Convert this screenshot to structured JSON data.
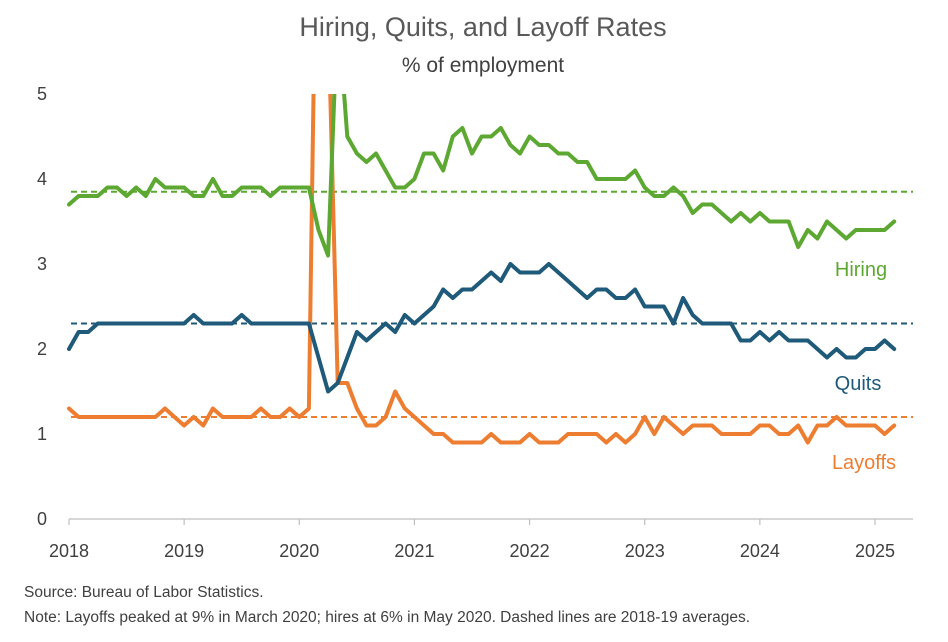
{
  "chart_data": {
    "type": "line",
    "title": "Hiring, Quits, and Layoff Rates",
    "subtitle": "% of employment",
    "xlabel": "",
    "ylabel": "",
    "xlim": [
      2018.0,
      2025.33
    ],
    "ylim": [
      0,
      5
    ],
    "x_ticks": [
      "2018",
      "2019",
      "2020",
      "2021",
      "2022",
      "2023",
      "2024",
      "2025"
    ],
    "y_ticks": [
      "0",
      "1",
      "2",
      "3",
      "4",
      "5"
    ],
    "x_start": 2018.0,
    "x_step_months": 1,
    "series": [
      {
        "name": "Hiring",
        "color": "#5DA832",
        "average": 3.85,
        "values": [
          3.7,
          3.8,
          3.8,
          3.8,
          3.9,
          3.9,
          3.8,
          3.9,
          3.8,
          4.0,
          3.9,
          3.9,
          3.9,
          3.8,
          3.8,
          4.0,
          3.8,
          3.8,
          3.9,
          3.9,
          3.9,
          3.8,
          3.9,
          3.9,
          3.9,
          3.9,
          3.4,
          3.1,
          6.0,
          4.5,
          4.3,
          4.2,
          4.3,
          4.1,
          3.9,
          3.9,
          4.0,
          4.3,
          4.3,
          4.1,
          4.5,
          4.6,
          4.3,
          4.5,
          4.5,
          4.6,
          4.4,
          4.3,
          4.5,
          4.4,
          4.4,
          4.3,
          4.3,
          4.2,
          4.2,
          4.0,
          4.0,
          4.0,
          4.0,
          4.1,
          3.9,
          3.8,
          3.8,
          3.9,
          3.8,
          3.6,
          3.7,
          3.7,
          3.6,
          3.5,
          3.6,
          3.5,
          3.6,
          3.5,
          3.5,
          3.5,
          3.2,
          3.4,
          3.3,
          3.5,
          3.4,
          3.3,
          3.4,
          3.4,
          3.4,
          3.4,
          3.5
        ]
      },
      {
        "name": "Quits",
        "color": "#1F5A7A",
        "average": 2.3,
        "values": [
          2.0,
          2.2,
          2.2,
          2.3,
          2.3,
          2.3,
          2.3,
          2.3,
          2.3,
          2.3,
          2.3,
          2.3,
          2.3,
          2.4,
          2.3,
          2.3,
          2.3,
          2.3,
          2.4,
          2.3,
          2.3,
          2.3,
          2.3,
          2.3,
          2.3,
          2.3,
          1.9,
          1.5,
          1.6,
          1.9,
          2.2,
          2.1,
          2.2,
          2.3,
          2.2,
          2.4,
          2.3,
          2.4,
          2.5,
          2.7,
          2.6,
          2.7,
          2.7,
          2.8,
          2.9,
          2.8,
          3.0,
          2.9,
          2.9,
          2.9,
          3.0,
          2.9,
          2.8,
          2.7,
          2.6,
          2.7,
          2.7,
          2.6,
          2.6,
          2.7,
          2.5,
          2.5,
          2.5,
          2.3,
          2.6,
          2.4,
          2.3,
          2.3,
          2.3,
          2.3,
          2.1,
          2.1,
          2.2,
          2.1,
          2.2,
          2.1,
          2.1,
          2.1,
          2.0,
          1.9,
          2.0,
          1.9,
          1.9,
          2.0,
          2.0,
          2.1,
          2.0
        ]
      },
      {
        "name": "Layoffs",
        "color": "#ED7D31",
        "average": 1.2,
        "values": [
          1.3,
          1.2,
          1.2,
          1.2,
          1.2,
          1.2,
          1.2,
          1.2,
          1.2,
          1.2,
          1.3,
          1.2,
          1.1,
          1.2,
          1.1,
          1.3,
          1.2,
          1.2,
          1.2,
          1.2,
          1.3,
          1.2,
          1.2,
          1.3,
          1.2,
          1.3,
          9.0,
          6.0,
          1.6,
          1.6,
          1.3,
          1.1,
          1.1,
          1.2,
          1.5,
          1.3,
          1.2,
          1.1,
          1.0,
          1.0,
          0.9,
          0.9,
          0.9,
          0.9,
          1.0,
          0.9,
          0.9,
          0.9,
          1.0,
          0.9,
          0.9,
          0.9,
          1.0,
          1.0,
          1.0,
          1.0,
          0.9,
          1.0,
          0.9,
          1.0,
          1.2,
          1.0,
          1.2,
          1.1,
          1.0,
          1.1,
          1.1,
          1.1,
          1.0,
          1.0,
          1.0,
          1.0,
          1.1,
          1.1,
          1.0,
          1.0,
          1.1,
          0.9,
          1.1,
          1.1,
          1.2,
          1.1,
          1.1,
          1.1,
          1.1,
          1.0,
          1.1
        ]
      }
    ]
  },
  "footer": {
    "source": "Source: Bureau of Labor Statistics.",
    "note": "Note: Layoffs peaked at 9% in March 2020; hires at 6% in May 2020. Dashed lines are 2018-19 averages."
  }
}
